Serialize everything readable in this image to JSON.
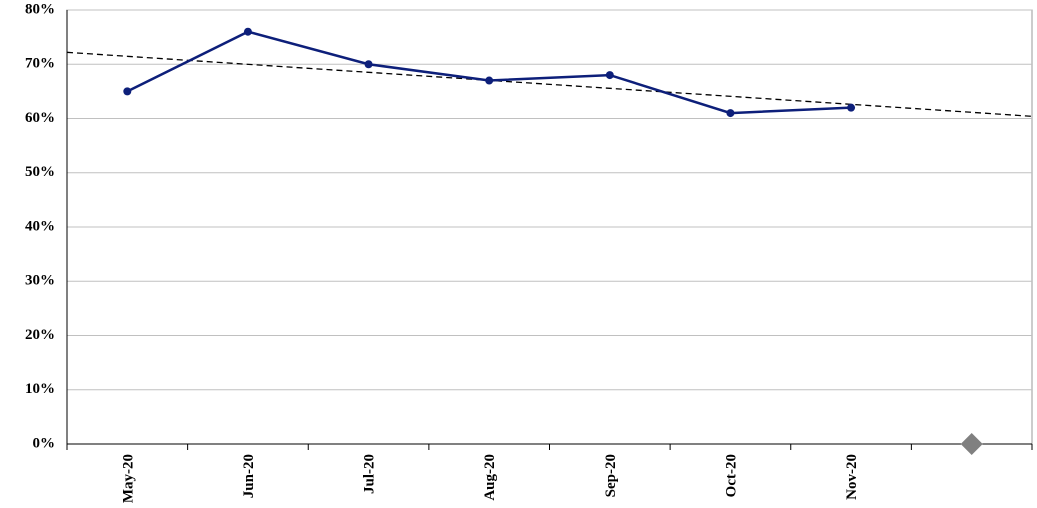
{
  "chart_data": {
    "type": "line",
    "categories": [
      "May-20",
      "Jun-20",
      "Jul-20",
      "Aug-20",
      "Sep-20",
      "Oct-20",
      "Nov-20",
      null
    ],
    "series": [
      {
        "color": "#0d1f7a",
        "marker": "circle",
        "values": [
          65,
          76,
          70,
          67,
          68,
          61,
          62,
          null
        ]
      },
      {
        "color": "#808080",
        "marker": "diamond",
        "values": [
          null,
          null,
          null,
          null,
          null,
          null,
          null,
          0
        ]
      }
    ],
    "trendline": {
      "color": "#000000",
      "dashed": true,
      "values": [
        72.2,
        60.4
      ]
    },
    "ylim": [
      0,
      80
    ],
    "yticks": [
      {
        "value": 0,
        "label": "0%"
      },
      {
        "value": 10,
        "label": "10%"
      },
      {
        "value": 20,
        "label": "20%"
      },
      {
        "value": 30,
        "label": "30%"
      },
      {
        "value": 40,
        "label": "40%"
      },
      {
        "value": 50,
        "label": "50%"
      },
      {
        "value": 60,
        "label": "60%"
      },
      {
        "value": 70,
        "label": "70%"
      },
      {
        "value": 80,
        "label": "80%"
      }
    ],
    "grid": true
  }
}
